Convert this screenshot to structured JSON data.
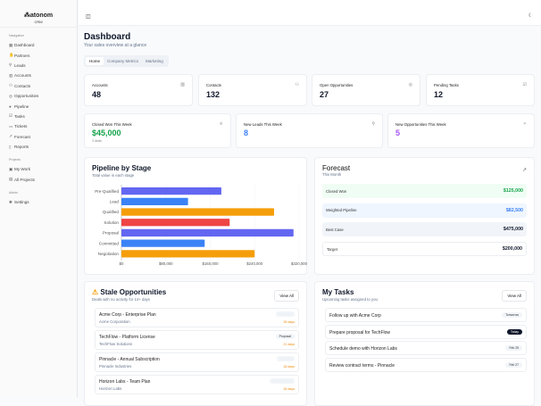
{
  "sidebar": {
    "brand": "atonom",
    "product": "CRM",
    "sections": [
      {
        "label": "Navigation",
        "items": [
          {
            "label": "Dashboard",
            "icon": "grid-icon"
          },
          {
            "label": "Partners",
            "icon": "handshake-icon"
          },
          {
            "label": "Leads",
            "icon": "user-plus-icon"
          },
          {
            "label": "Accounts",
            "icon": "building-icon"
          },
          {
            "label": "Contacts",
            "icon": "users-icon"
          },
          {
            "label": "Opportunities",
            "icon": "target-icon"
          },
          {
            "label": "Pipeline",
            "icon": "pipeline-icon"
          },
          {
            "label": "Tasks",
            "icon": "checklist-icon"
          },
          {
            "label": "Tickets",
            "icon": "ticket-icon"
          },
          {
            "label": "Forecast",
            "icon": "trending-up-icon"
          },
          {
            "label": "Reports",
            "icon": "file-icon"
          }
        ]
      },
      {
        "label": "Projects",
        "items": [
          {
            "label": "My Work",
            "icon": "briefcase-icon"
          },
          {
            "label": "All Projects",
            "icon": "folder-icon"
          }
        ]
      },
      {
        "label": "Admin",
        "items": [
          {
            "label": "Settings",
            "icon": "gear-icon"
          }
        ]
      }
    ]
  },
  "header": {
    "title": "Dashboard",
    "subtitle": "Your sales overview at a glance"
  },
  "tabs": [
    {
      "label": "Home",
      "active": true
    },
    {
      "label": "Company Metrics"
    },
    {
      "label": "Marketing"
    }
  ],
  "stats": [
    {
      "label": "Accounts",
      "value": "48",
      "icon": "building-icon"
    },
    {
      "label": "Contacts",
      "value": "132",
      "icon": "users-icon"
    },
    {
      "label": "Open Opportunities",
      "value": "27",
      "icon": "target-icon"
    },
    {
      "label": "Pending Tasks",
      "value": "12",
      "icon": "checklist-icon"
    }
  ],
  "weekly": [
    {
      "label": "Closed Won This Week",
      "value": "$45,000",
      "sub": "3 deals",
      "color": "#16a34a",
      "icon": "trophy-icon"
    },
    {
      "label": "New Leads This Week",
      "value": "8",
      "color": "#3b82f6",
      "icon": "user-plus-icon"
    },
    {
      "label": "New Opportunities This Week",
      "value": "5",
      "color": "#a855f7",
      "icon": "sparkle-icon"
    }
  ],
  "pipeline": {
    "title": "Pipeline by Stage",
    "subtitle": "Total value in each stage"
  },
  "chart_data": {
    "type": "bar",
    "orientation": "horizontal",
    "categories": [
      "Pre-Qualified",
      "Lead",
      "Qualified",
      "Solution",
      "Proposal",
      "Committed",
      "Negotiation"
    ],
    "values": [
      180000,
      120000,
      275000,
      195000,
      310000,
      150000,
      240000
    ],
    "colors": [
      "#6366f1",
      "#3b82f6",
      "#f59e0b",
      "#ef4444",
      "#6366f1",
      "#3b82f6",
      "#f59e0b"
    ],
    "xlim": [
      0,
      320000
    ],
    "xticks": [
      "$0",
      "$80,000",
      "$160,000",
      "$240,000",
      "$320,000"
    ],
    "grid": true
  },
  "forecast": {
    "title": "Forecast",
    "subtitle": "This Month",
    "rows": [
      {
        "label": "Closed Won",
        "value": "$125,000",
        "bg": "#f0fdf4",
        "color": "#16a34a"
      },
      {
        "label": "Weighted Pipeline",
        "value": "$82,500",
        "bg": "#eff6ff",
        "color": "#3b82f6"
      },
      {
        "label": "Best Case",
        "value": "$475,000",
        "bg": "#f1f5f9",
        "color": "#0f172a"
      },
      {
        "label": "Target",
        "value": "$200,000",
        "bg": "#ffffff",
        "color": "#0f172a"
      }
    ]
  },
  "stale": {
    "title": "Stale Opportunities",
    "subtitle": "Deals with no activity for 14+ days",
    "view_all": "View All",
    "items": [
      {
        "name": "Acme Corp - Enterprise Plan",
        "company": "Acme Corporation",
        "stage": "Qualified",
        "days": "28 days"
      },
      {
        "name": "TechFlow - Platform License",
        "company": "TechFlow Solutions",
        "stage": "Proposal",
        "days": "21 days"
      },
      {
        "name": "Pinnacle - Annual Subscription",
        "company": "Pinnacle Industries",
        "stage": "Solution",
        "days": "18 days"
      },
      {
        "name": "Horizon Labs - Team Plan",
        "company": "Horizon Labs",
        "stage": "Pre-Qualified",
        "days": "16 days"
      }
    ]
  },
  "tasks": {
    "title": "My Tasks",
    "subtitle": "Upcoming tasks assigned to you",
    "view_all": "View All",
    "items": [
      {
        "title": "Follow up with Acme Corp",
        "due": "Tomorrow"
      },
      {
        "title": "Prepare proposal for TechFlow",
        "due": "Today"
      },
      {
        "title": "Schedule demo with Horizon Labs",
        "due": "Feb 25"
      },
      {
        "title": "Review contract terms - Pinnacle",
        "due": "Feb 27"
      }
    ]
  }
}
